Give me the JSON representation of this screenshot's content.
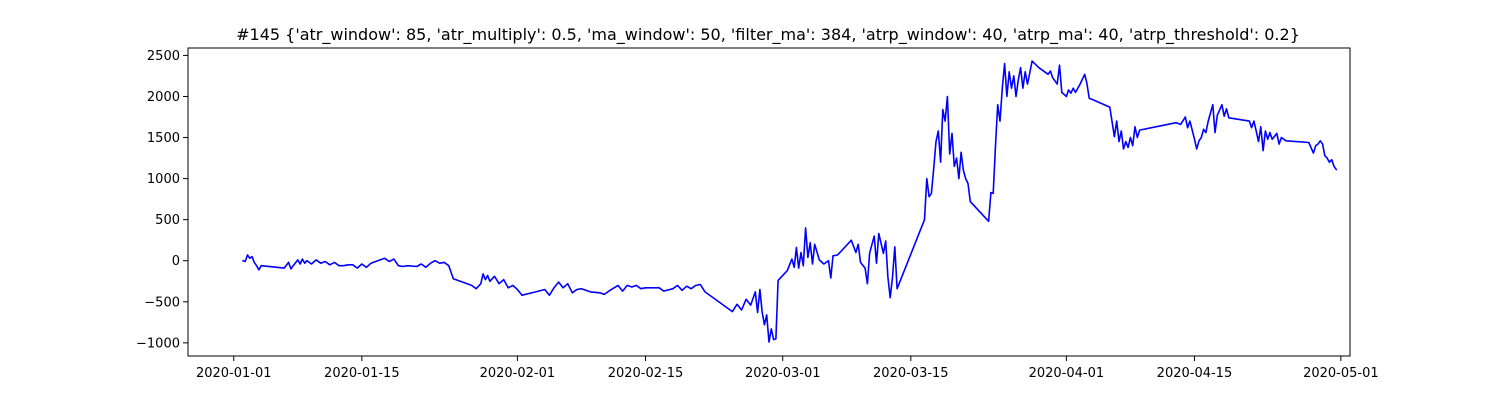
{
  "chart_data": {
    "type": "line",
    "title": "#145 {'atr_window': 85, 'atr_multiply': 0.5, 'ma_window': 50, 'filter_ma': 384, 'atrp_window': 40, 'atrp_ma': 40, 'atrp_threshold': 0.2}",
    "xlabel": "",
    "ylabel": "",
    "x_axis_type": "date",
    "xlim": [
      "2019-12-27",
      "2020-05-02"
    ],
    "ylim": [
      -1160,
      2590
    ],
    "grid": false,
    "legend": "none",
    "x_ticks": [
      "2020-01-01",
      "2020-01-15",
      "2020-02-01",
      "2020-02-15",
      "2020-03-01",
      "2020-03-15",
      "2020-04-01",
      "2020-04-15",
      "2020-05-01"
    ],
    "y_ticks": [
      2500,
      2000,
      1500,
      1000,
      500,
      0,
      -500,
      -1000
    ],
    "series": [
      {
        "color": "#0000ff",
        "points": [
          [
            "2020-01-02T00:00",
            0
          ],
          [
            "2020-01-02T06:00",
            -10
          ],
          [
            "2020-01-02T12:00",
            70
          ],
          [
            "2020-01-02T18:00",
            30
          ],
          [
            "2020-01-03T00:00",
            50
          ],
          [
            "2020-01-03T06:00",
            -20
          ],
          [
            "2020-01-03T12:00",
            -60
          ],
          [
            "2020-01-03T18:00",
            -110
          ],
          [
            "2020-01-04T00:00",
            -60
          ],
          [
            "2020-01-06T12:00",
            -90
          ],
          [
            "2020-01-07T00:00",
            -20
          ],
          [
            "2020-01-07T06:00",
            -100
          ],
          [
            "2020-01-07T12:00",
            -60
          ],
          [
            "2020-01-08T00:00",
            10
          ],
          [
            "2020-01-08T06:00",
            -40
          ],
          [
            "2020-01-08T12:00",
            20
          ],
          [
            "2020-01-08T18:00",
            -30
          ],
          [
            "2020-01-09T00:00",
            0
          ],
          [
            "2020-01-09T12:00",
            -40
          ],
          [
            "2020-01-10T00:00",
            10
          ],
          [
            "2020-01-10T12:00",
            -30
          ],
          [
            "2020-01-11T00:00",
            -10
          ],
          [
            "2020-01-11T12:00",
            -50
          ],
          [
            "2020-01-12T00:00",
            -20
          ],
          [
            "2020-01-12T12:00",
            -60
          ],
          [
            "2020-01-13T00:00",
            -60
          ],
          [
            "2020-01-13T12:00",
            -50
          ],
          [
            "2020-01-14T00:00",
            -50
          ],
          [
            "2020-01-14T12:00",
            -90
          ],
          [
            "2020-01-15T00:00",
            -40
          ],
          [
            "2020-01-15T12:00",
            -80
          ],
          [
            "2020-01-16T00:00",
            -30
          ],
          [
            "2020-01-16T12:00",
            -10
          ],
          [
            "2020-01-17T00:00",
            10
          ],
          [
            "2020-01-17T12:00",
            30
          ],
          [
            "2020-01-18T00:00",
            -10
          ],
          [
            "2020-01-18T12:00",
            20
          ],
          [
            "2020-01-19T00:00",
            -60
          ],
          [
            "2020-01-19T12:00",
            -70
          ],
          [
            "2020-01-20T00:00",
            -60
          ],
          [
            "2020-01-21T00:00",
            -70
          ],
          [
            "2020-01-21T12:00",
            -40
          ],
          [
            "2020-01-22T00:00",
            -80
          ],
          [
            "2020-01-22T12:00",
            -30
          ],
          [
            "2020-01-23T00:00",
            0
          ],
          [
            "2020-01-23T12:00",
            -30
          ],
          [
            "2020-01-24T00:00",
            -20
          ],
          [
            "2020-01-24T12:00",
            -60
          ],
          [
            "2020-01-25T00:00",
            -220
          ],
          [
            "2020-01-27T00:00",
            -300
          ],
          [
            "2020-01-27T12:00",
            -340
          ],
          [
            "2020-01-28T00:00",
            -280
          ],
          [
            "2020-01-28T06:00",
            -160
          ],
          [
            "2020-01-28T12:00",
            -230
          ],
          [
            "2020-01-28T18:00",
            -180
          ],
          [
            "2020-01-29T00:00",
            -250
          ],
          [
            "2020-01-29T12:00",
            -190
          ],
          [
            "2020-01-30T00:00",
            -280
          ],
          [
            "2020-01-30T12:00",
            -230
          ],
          [
            "2020-01-31T00:00",
            -330
          ],
          [
            "2020-01-31T12:00",
            -300
          ],
          [
            "2020-02-01T00:00",
            -350
          ],
          [
            "2020-02-01T12:00",
            -420
          ],
          [
            "2020-02-03T00:00",
            -380
          ],
          [
            "2020-02-04T00:00",
            -350
          ],
          [
            "2020-02-04T12:00",
            -420
          ],
          [
            "2020-02-05T00:00",
            -330
          ],
          [
            "2020-02-05T12:00",
            -260
          ],
          [
            "2020-02-06T00:00",
            -330
          ],
          [
            "2020-02-06T12:00",
            -280
          ],
          [
            "2020-02-07T00:00",
            -390
          ],
          [
            "2020-02-07T12:00",
            -350
          ],
          [
            "2020-02-08T00:00",
            -340
          ],
          [
            "2020-02-09T00:00",
            -380
          ],
          [
            "2020-02-10T00:00",
            -390
          ],
          [
            "2020-02-10T12:00",
            -410
          ],
          [
            "2020-02-11T00:00",
            -370
          ],
          [
            "2020-02-12T00:00",
            -300
          ],
          [
            "2020-02-12T12:00",
            -370
          ],
          [
            "2020-02-13T00:00",
            -300
          ],
          [
            "2020-02-13T12:00",
            -320
          ],
          [
            "2020-02-14T00:00",
            -300
          ],
          [
            "2020-02-14T12:00",
            -340
          ],
          [
            "2020-02-15T00:00",
            -330
          ],
          [
            "2020-02-16T12:00",
            -330
          ],
          [
            "2020-02-17T00:00",
            -370
          ],
          [
            "2020-02-18T00:00",
            -340
          ],
          [
            "2020-02-18T12:00",
            -300
          ],
          [
            "2020-02-19T00:00",
            -360
          ],
          [
            "2020-02-19T12:00",
            -310
          ],
          [
            "2020-02-20T00:00",
            -340
          ],
          [
            "2020-02-20T12:00",
            -300
          ],
          [
            "2020-02-21T00:00",
            -290
          ],
          [
            "2020-02-21T12:00",
            -380
          ],
          [
            "2020-02-24T12:00",
            -620
          ],
          [
            "2020-02-25T00:00",
            -530
          ],
          [
            "2020-02-25T12:00",
            -600
          ],
          [
            "2020-02-26T00:00",
            -470
          ],
          [
            "2020-02-26T12:00",
            -540
          ],
          [
            "2020-02-27T00:00",
            -380
          ],
          [
            "2020-02-27T06:00",
            -630
          ],
          [
            "2020-02-27T12:00",
            -350
          ],
          [
            "2020-02-27T18:00",
            -620
          ],
          [
            "2020-02-28T00:00",
            -780
          ],
          [
            "2020-02-28T06:00",
            -660
          ],
          [
            "2020-02-28T12:00",
            -990
          ],
          [
            "2020-02-28T18:00",
            -830
          ],
          [
            "2020-02-29T00:00",
            -960
          ],
          [
            "2020-02-29T06:00",
            -950
          ],
          [
            "2020-02-29T12:00",
            -240
          ],
          [
            "2020-03-01T12:00",
            -120
          ],
          [
            "2020-03-02T00:00",
            20
          ],
          [
            "2020-03-02T06:00",
            -80
          ],
          [
            "2020-03-02T12:00",
            160
          ],
          [
            "2020-03-02T18:00",
            -90
          ],
          [
            "2020-03-03T00:00",
            100
          ],
          [
            "2020-03-03T06:00",
            -60
          ],
          [
            "2020-03-03T12:00",
            400
          ],
          [
            "2020-03-03T18:00",
            40
          ],
          [
            "2020-03-04T00:00",
            220
          ],
          [
            "2020-03-04T06:00",
            -40
          ],
          [
            "2020-03-04T12:00",
            200
          ],
          [
            "2020-03-05T00:00",
            10
          ],
          [
            "2020-03-05T12:00",
            -40
          ],
          [
            "2020-03-06T00:00",
            0
          ],
          [
            "2020-03-06T06:00",
            -210
          ],
          [
            "2020-03-06T12:00",
            60
          ],
          [
            "2020-03-07T00:00",
            70
          ],
          [
            "2020-03-08T12:00",
            250
          ],
          [
            "2020-03-09T00:00",
            100
          ],
          [
            "2020-03-09T06:00",
            200
          ],
          [
            "2020-03-09T12:00",
            -20
          ],
          [
            "2020-03-10T00:00",
            -90
          ],
          [
            "2020-03-10T06:00",
            -280
          ],
          [
            "2020-03-10T12:00",
            90
          ],
          [
            "2020-03-11T00:00",
            300
          ],
          [
            "2020-03-11T06:00",
            -30
          ],
          [
            "2020-03-11T12:00",
            330
          ],
          [
            "2020-03-12T00:00",
            90
          ],
          [
            "2020-03-12T06:00",
            240
          ],
          [
            "2020-03-12T12:00",
            -200
          ],
          [
            "2020-03-12T18:00",
            -450
          ],
          [
            "2020-03-13T00:00",
            -200
          ],
          [
            "2020-03-13T06:00",
            170
          ],
          [
            "2020-03-13T12:00",
            -340
          ],
          [
            "2020-03-16T12:00",
            500
          ],
          [
            "2020-03-16T18:00",
            1000
          ],
          [
            "2020-03-17T00:00",
            780
          ],
          [
            "2020-03-17T06:00",
            820
          ],
          [
            "2020-03-17T12:00",
            1120
          ],
          [
            "2020-03-17T18:00",
            1450
          ],
          [
            "2020-03-18T00:00",
            1580
          ],
          [
            "2020-03-18T06:00",
            1200
          ],
          [
            "2020-03-18T12:00",
            1840
          ],
          [
            "2020-03-18T18:00",
            1700
          ],
          [
            "2020-03-19T00:00",
            2000
          ],
          [
            "2020-03-19T06:00",
            1300
          ],
          [
            "2020-03-19T12:00",
            1550
          ],
          [
            "2020-03-19T18:00",
            1150
          ],
          [
            "2020-03-20T00:00",
            1250
          ],
          [
            "2020-03-20T06:00",
            1000
          ],
          [
            "2020-03-20T12:00",
            1320
          ],
          [
            "2020-03-20T18:00",
            1100
          ],
          [
            "2020-03-21T00:00",
            1000
          ],
          [
            "2020-03-21T06:00",
            940
          ],
          [
            "2020-03-21T12:00",
            720
          ],
          [
            "2020-03-23T12:00",
            480
          ],
          [
            "2020-03-23T18:00",
            830
          ],
          [
            "2020-03-24T00:00",
            820
          ],
          [
            "2020-03-24T06:00",
            1400
          ],
          [
            "2020-03-24T12:00",
            1900
          ],
          [
            "2020-03-24T18:00",
            1700
          ],
          [
            "2020-03-25T00:00",
            2100
          ],
          [
            "2020-03-25T06:00",
            2400
          ],
          [
            "2020-03-25T12:00",
            2000
          ],
          [
            "2020-03-25T18:00",
            2300
          ],
          [
            "2020-03-26T00:00",
            2100
          ],
          [
            "2020-03-26T06:00",
            2250
          ],
          [
            "2020-03-26T12:00",
            2000
          ],
          [
            "2020-03-26T18:00",
            2200
          ],
          [
            "2020-03-27T00:00",
            2350
          ],
          [
            "2020-03-27T06:00",
            2100
          ],
          [
            "2020-03-27T12:00",
            2300
          ],
          [
            "2020-03-27T18:00",
            2150
          ],
          [
            "2020-03-28T06:00",
            2430
          ],
          [
            "2020-03-29T00:00",
            2350
          ],
          [
            "2020-03-30T00:00",
            2270
          ],
          [
            "2020-03-30T06:00",
            2310
          ],
          [
            "2020-03-30T12:00",
            2230
          ],
          [
            "2020-03-31T00:00",
            2150
          ],
          [
            "2020-03-31T06:00",
            2380
          ],
          [
            "2020-03-31T12:00",
            2050
          ],
          [
            "2020-04-01T00:00",
            2000
          ],
          [
            "2020-04-01T06:00",
            2080
          ],
          [
            "2020-04-01T12:00",
            2040
          ],
          [
            "2020-04-01T18:00",
            2100
          ],
          [
            "2020-04-02T00:00",
            2050
          ],
          [
            "2020-04-02T12:00",
            2150
          ],
          [
            "2020-04-03T00:00",
            2270
          ],
          [
            "2020-04-03T06:00",
            2160
          ],
          [
            "2020-04-03T12:00",
            1980
          ],
          [
            "2020-04-05T18:00",
            1870
          ],
          [
            "2020-04-06T06:00",
            1510
          ],
          [
            "2020-04-06T12:00",
            1700
          ],
          [
            "2020-04-06T18:00",
            1450
          ],
          [
            "2020-04-07T00:00",
            1580
          ],
          [
            "2020-04-07T06:00",
            1360
          ],
          [
            "2020-04-07T12:00",
            1450
          ],
          [
            "2020-04-07T18:00",
            1380
          ],
          [
            "2020-04-08T00:00",
            1500
          ],
          [
            "2020-04-08T06:00",
            1400
          ],
          [
            "2020-04-08T12:00",
            1630
          ],
          [
            "2020-04-08T18:00",
            1500
          ],
          [
            "2020-04-09T00:00",
            1590
          ],
          [
            "2020-04-13T00:00",
            1680
          ],
          [
            "2020-04-13T12:00",
            1660
          ],
          [
            "2020-04-14T00:00",
            1750
          ],
          [
            "2020-04-14T06:00",
            1620
          ],
          [
            "2020-04-14T12:00",
            1700
          ],
          [
            "2020-04-15T00:00",
            1480
          ],
          [
            "2020-04-15T06:00",
            1360
          ],
          [
            "2020-04-15T12:00",
            1460
          ],
          [
            "2020-04-15T18:00",
            1500
          ],
          [
            "2020-04-16T00:00",
            1600
          ],
          [
            "2020-04-16T06:00",
            1560
          ],
          [
            "2020-04-16T12:00",
            1700
          ],
          [
            "2020-04-17T00:00",
            1900
          ],
          [
            "2020-04-17T06:00",
            1560
          ],
          [
            "2020-04-17T12:00",
            1770
          ],
          [
            "2020-04-18T00:00",
            1900
          ],
          [
            "2020-04-18T06:00",
            1760
          ],
          [
            "2020-04-18T12:00",
            1850
          ],
          [
            "2020-04-18T18:00",
            1740
          ],
          [
            "2020-04-21T00:00",
            1700
          ],
          [
            "2020-04-21T06:00",
            1620
          ],
          [
            "2020-04-21T12:00",
            1700
          ],
          [
            "2020-04-21T18:00",
            1580
          ],
          [
            "2020-04-22T00:00",
            1450
          ],
          [
            "2020-04-22T06:00",
            1630
          ],
          [
            "2020-04-22T12:00",
            1340
          ],
          [
            "2020-04-22T18:00",
            1580
          ],
          [
            "2020-04-23T00:00",
            1480
          ],
          [
            "2020-04-23T06:00",
            1560
          ],
          [
            "2020-04-23T12:00",
            1480
          ],
          [
            "2020-04-24T00:00",
            1550
          ],
          [
            "2020-04-24T06:00",
            1420
          ],
          [
            "2020-04-24T12:00",
            1500
          ],
          [
            "2020-04-25T00:00",
            1460
          ],
          [
            "2020-04-27T12:00",
            1440
          ],
          [
            "2020-04-28T00:00",
            1310
          ],
          [
            "2020-04-28T06:00",
            1400
          ],
          [
            "2020-04-28T12:00",
            1420
          ],
          [
            "2020-04-28T18:00",
            1460
          ],
          [
            "2020-04-29T00:00",
            1420
          ],
          [
            "2020-04-29T06:00",
            1280
          ],
          [
            "2020-04-29T12:00",
            1250
          ],
          [
            "2020-04-29T18:00",
            1200
          ],
          [
            "2020-04-30T00:00",
            1230
          ],
          [
            "2020-04-30T06:00",
            1150
          ],
          [
            "2020-04-30T12:00",
            1110
          ]
        ]
      }
    ]
  }
}
